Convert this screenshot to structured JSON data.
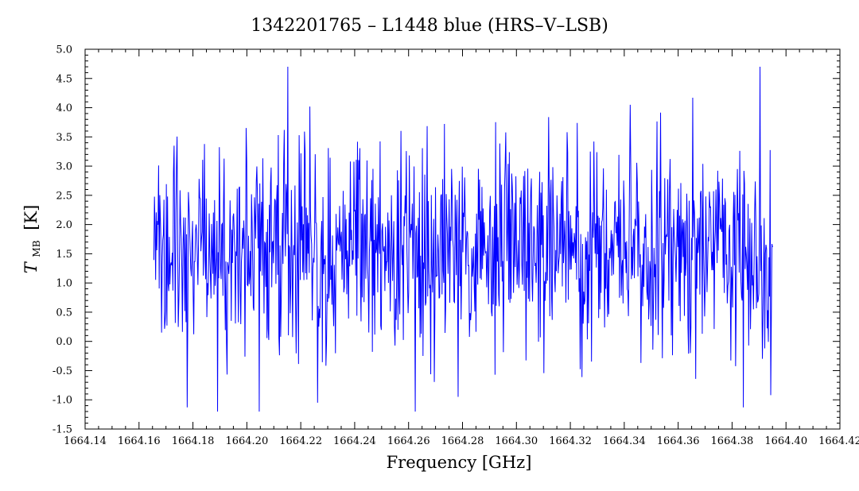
{
  "chart_data": {
    "type": "line",
    "title": "1342201765 – L1448 blue (HRS–V–LSB)",
    "xlabel": "Frequency [GHz]",
    "ylabel_main": "T",
    "ylabel_sub": "MB",
    "ylabel_unit": "[K]",
    "xlim": [
      1664.14,
      1664.42
    ],
    "ylim": [
      -1.5,
      5.0
    ],
    "x_ticks": [
      1664.14,
      1664.16,
      1664.18,
      1664.2,
      1664.22,
      1664.24,
      1664.26,
      1664.28,
      1664.3,
      1664.32,
      1664.34,
      1664.36,
      1664.38,
      1664.4,
      1664.42
    ],
    "x_tick_labels": [
      "1664.14",
      "1664.16",
      "1664.18",
      "1664.20",
      "1664.22",
      "1664.24",
      "1664.26",
      "1664.28",
      "1664.30",
      "1664.32",
      "1664.34",
      "1664.36",
      "1664.38",
      "1664.40",
      "1664.42"
    ],
    "y_ticks": [
      -1.5,
      -1.0,
      -0.5,
      0.0,
      0.5,
      1.0,
      1.5,
      2.0,
      2.5,
      3.0,
      3.5,
      4.0,
      4.5,
      5.0
    ],
    "y_tick_labels": [
      "-1.5",
      "-1.0",
      "-0.5",
      "0.0",
      "0.5",
      "1.0",
      "1.5",
      "2.0",
      "2.5",
      "3.0",
      "3.5",
      "4.0",
      "4.5",
      "5.0"
    ],
    "grid": false,
    "series": [
      {
        "color": "#0000ff",
        "x_start": 1664.1655,
        "x_end": 1664.395,
        "mean": 1.6,
        "noise_rms": 0.85,
        "n_points": 1040,
        "y_min": -1.2,
        "y_max": 4.7,
        "notable_spikes": [
          {
            "x": 1664.2152,
            "y": 4.7
          },
          {
            "x": 1664.3903,
            "y": 4.7
          },
          {
            "x": 1664.3653,
            "y": 4.17
          },
          {
            "x": 1664.3423,
            "y": 4.05
          },
          {
            "x": 1664.2234,
            "y": 4.02
          },
          {
            "x": 1664.1892,
            "y": -1.2
          },
          {
            "x": 1664.2045,
            "y": -1.2
          },
          {
            "x": 1664.1778,
            "y": -1.13
          },
          {
            "x": 1664.3842,
            "y": -1.13
          },
          {
            "x": 1664.2262,
            "y": -1.05
          },
          {
            "x": 1664.2783,
            "y": -0.95
          },
          {
            "x": 1664.3943,
            "y": -0.92
          }
        ]
      }
    ]
  }
}
